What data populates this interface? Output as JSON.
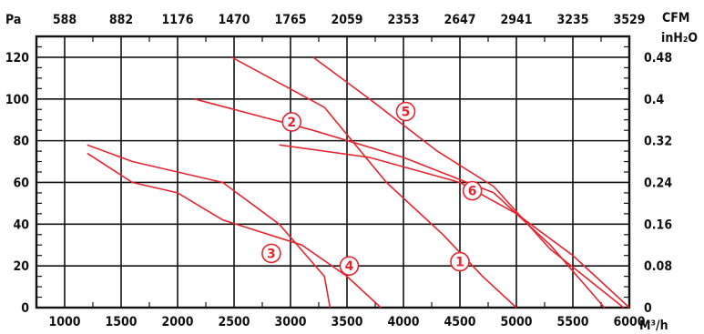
{
  "chart_data": {
    "type": "line",
    "x_unit_bottom": "M³/h",
    "x_unit_top": "CFM",
    "y_unit_left": "Pa",
    "y_unit_right": "inH₂O",
    "x_ticks_bottom": [
      "1000",
      "1500",
      "2000",
      "2500",
      "3000",
      "3500",
      "4000",
      "4500",
      "5000",
      "5500",
      "6000"
    ],
    "x_ticks_top": [
      "588",
      "882",
      "1176",
      "1470",
      "1765",
      "2059",
      "2353",
      "2647",
      "2941",
      "3235",
      "3529"
    ],
    "y_ticks_left": [
      "0",
      "20",
      "40",
      "60",
      "80",
      "100",
      "120"
    ],
    "y_ticks_right": [
      "0",
      "0.08",
      "0.16",
      "0.24",
      "0.32",
      "0.4",
      "0.48"
    ],
    "xlim": [
      750,
      6000
    ],
    "ylim": [
      0,
      130
    ],
    "grid": true,
    "series": [
      {
        "name": "1",
        "label_at": [
          4500,
          22
        ],
        "points": [
          [
            2480,
            120
          ],
          [
            3300,
            96
          ],
          [
            3850,
            60
          ],
          [
            4350,
            35
          ],
          [
            4700,
            15
          ],
          [
            5000,
            0
          ]
        ]
      },
      {
        "name": "2",
        "label_at": [
          3010,
          89
        ],
        "points": [
          [
            2150,
            100
          ],
          [
            3200,
            85
          ],
          [
            4000,
            72
          ],
          [
            4800,
            55
          ],
          [
            5300,
            30
          ],
          [
            5780,
            0
          ]
        ]
      },
      {
        "name": "3",
        "label_at": [
          2830,
          26
        ],
        "points": [
          [
            1200,
            78
          ],
          [
            1600,
            70
          ],
          [
            2400,
            60
          ],
          [
            2900,
            40
          ],
          [
            3300,
            15
          ],
          [
            3350,
            0
          ]
        ]
      },
      {
        "name": "4",
        "label_at": [
          3520,
          20
        ],
        "points": [
          [
            1200,
            74
          ],
          [
            1600,
            60
          ],
          [
            2000,
            55
          ],
          [
            2400,
            42
          ],
          [
            3100,
            30
          ],
          [
            3500,
            15
          ],
          [
            3800,
            0
          ]
        ]
      },
      {
        "name": "5",
        "label_at": [
          4020,
          94
        ],
        "points": [
          [
            3200,
            120
          ],
          [
            3700,
            100
          ],
          [
            4300,
            75
          ],
          [
            4800,
            58
          ],
          [
            5300,
            28
          ],
          [
            5950,
            0
          ]
        ]
      },
      {
        "name": "6",
        "label_at": [
          4610,
          56
        ],
        "points": [
          [
            2900,
            78
          ],
          [
            3700,
            72
          ],
          [
            4500,
            60
          ],
          [
            5000,
            45
          ],
          [
            5500,
            25
          ],
          [
            6000,
            0
          ]
        ]
      }
    ],
    "colors": {
      "curve": "#e3262f",
      "axis": "#111111"
    }
  }
}
